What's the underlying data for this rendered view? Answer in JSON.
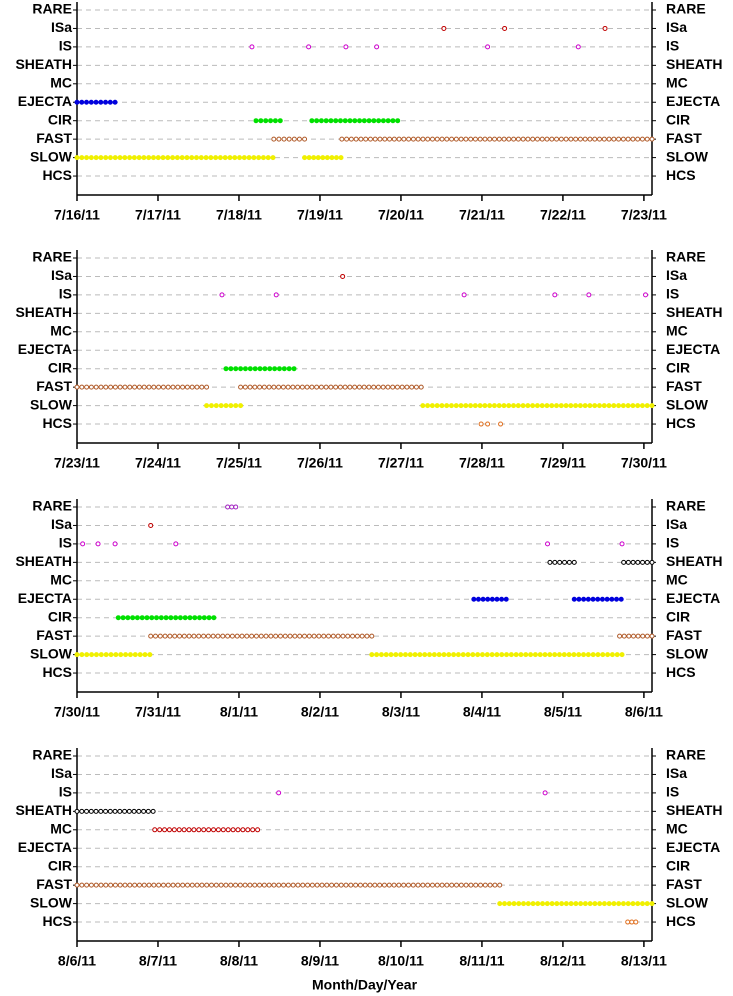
{
  "chart_data": [
    {
      "type": "timeline",
      "categories": [
        "RARE",
        "ISa",
        "IS",
        "SHEATH",
        "MC",
        "EJECTA",
        "CIR",
        "FAST",
        "SLOW",
        "HCS"
      ],
      "xlim": [
        197,
        204.1
      ],
      "xticks": [
        {
          "value": 197,
          "label": "7/16/11"
        },
        {
          "value": 198,
          "label": "7/17/11"
        },
        {
          "value": 199,
          "label": "7/18/11"
        },
        {
          "value": 200,
          "label": "7/19/11"
        },
        {
          "value": 201,
          "label": "7/20/11"
        },
        {
          "value": 202,
          "label": "7/21/11"
        },
        {
          "value": 203,
          "label": "7/22/11"
        },
        {
          "value": 204,
          "label": "7/23/11"
        }
      ],
      "grid": true,
      "series": [
        {
          "color": "#a020c0",
          "points": [],
          "runs": []
        },
        {
          "color": "#c00000",
          "points": [
            201.53,
            202.28,
            203.52
          ],
          "runs": []
        },
        {
          "color": "#cc00cc",
          "points": [
            199.16,
            199.86,
            200.32,
            200.7,
            202.07,
            203.19
          ],
          "runs": []
        },
        {
          "color": "#000000",
          "points": [],
          "runs": []
        },
        {
          "color": "#c00000",
          "points": [],
          "runs": []
        },
        {
          "color": "#0000dd",
          "filled": true,
          "points": [],
          "runs": [
            [
              197.0,
              197.47
            ]
          ]
        },
        {
          "color": "#00e000",
          "filled": true,
          "points": [],
          "runs": [
            [
              199.21,
              199.51
            ],
            [
              199.9,
              200.96
            ]
          ]
        },
        {
          "color": "#b05a28",
          "points": [],
          "runs": [
            [
              199.43,
              199.81
            ],
            [
              200.27,
              204.1
            ]
          ]
        },
        {
          "color": "#f0f000",
          "filled": true,
          "points": [],
          "runs": [
            [
              197.0,
              199.42
            ],
            [
              199.81,
              200.26
            ]
          ]
        },
        {
          "color": "#e07020",
          "points": [],
          "runs": []
        }
      ]
    },
    {
      "type": "timeline",
      "categories": [
        "RARE",
        "ISa",
        "IS",
        "SHEATH",
        "MC",
        "EJECTA",
        "CIR",
        "FAST",
        "SLOW",
        "HCS"
      ],
      "xlim": [
        204,
        211.1
      ],
      "xticks": [
        {
          "value": 204,
          "label": "7/23/11"
        },
        {
          "value": 205,
          "label": "7/24/11"
        },
        {
          "value": 206,
          "label": "7/25/11"
        },
        {
          "value": 207,
          "label": "7/26/11"
        },
        {
          "value": 208,
          "label": "7/27/11"
        },
        {
          "value": 209,
          "label": "7/28/11"
        },
        {
          "value": 210,
          "label": "7/29/11"
        },
        {
          "value": 211,
          "label": "7/30/11"
        }
      ],
      "grid": true,
      "series": [
        {
          "color": "#a020c0",
          "points": [],
          "runs": []
        },
        {
          "color": "#c00000",
          "points": [
            207.28
          ],
          "runs": []
        },
        {
          "color": "#cc00cc",
          "points": [
            205.79,
            206.46,
            208.78,
            209.9,
            210.32,
            211.02
          ],
          "runs": []
        },
        {
          "color": "#000000",
          "points": [],
          "runs": []
        },
        {
          "color": "#c00000",
          "points": [],
          "runs": []
        },
        {
          "color": "#0000dd",
          "filled": true,
          "points": [],
          "runs": []
        },
        {
          "color": "#00e000",
          "filled": true,
          "points": [],
          "runs": [
            [
              205.84,
              206.68
            ]
          ]
        },
        {
          "color": "#b05a28",
          "points": [],
          "runs": [
            [
              204.0,
              205.6
            ],
            [
              206.02,
              208.25
            ]
          ]
        },
        {
          "color": "#f0f000",
          "filled": true,
          "points": [],
          "runs": [
            [
              205.6,
              206.02
            ],
            [
              208.27,
              211.1
            ]
          ]
        },
        {
          "color": "#e07020",
          "points": [
            208.99,
            209.07,
            209.23
          ],
          "runs": []
        }
      ]
    },
    {
      "type": "timeline",
      "categories": [
        "RARE",
        "ISa",
        "IS",
        "SHEATH",
        "MC",
        "EJECTA",
        "CIR",
        "FAST",
        "SLOW",
        "HCS"
      ],
      "xlim": [
        211,
        218.1
      ],
      "xticks": [
        {
          "value": 211,
          "label": "7/30/11"
        },
        {
          "value": 212,
          "label": "7/31/11"
        },
        {
          "value": 213,
          "label": "8/1/11"
        },
        {
          "value": 214,
          "label": "8/2/11"
        },
        {
          "value": 215,
          "label": "8/3/11"
        },
        {
          "value": 216,
          "label": "8/4/11"
        },
        {
          "value": 217,
          "label": "8/5/11"
        },
        {
          "value": 218,
          "label": "8/6/11"
        }
      ],
      "grid": true,
      "series": [
        {
          "color": "#a020c0",
          "points": [
            212.86,
            212.91,
            212.96
          ],
          "runs": []
        },
        {
          "color": "#c00000",
          "points": [
            211.91
          ],
          "runs": []
        },
        {
          "color": "#cc00cc",
          "points": [
            211.07,
            211.26,
            211.47,
            212.22,
            216.81,
            217.73
          ],
          "runs": []
        },
        {
          "color": "#000000",
          "points": [],
          "runs": [
            [
              216.84,
              217.14
            ],
            [
              217.75,
              218.1
            ]
          ]
        },
        {
          "color": "#c00000",
          "points": [],
          "runs": []
        },
        {
          "color": "#0000dd",
          "filled": true,
          "points": [],
          "runs": [
            [
              215.9,
              216.3
            ],
            [
              217.14,
              217.72
            ]
          ]
        },
        {
          "color": "#00e000",
          "filled": true,
          "points": [],
          "runs": [
            [
              211.51,
              212.69
            ]
          ]
        },
        {
          "color": "#b05a28",
          "points": [],
          "runs": [
            [
              211.91,
              214.64
            ],
            [
              217.7,
              218.1
            ]
          ]
        },
        {
          "color": "#f0f000",
          "filled": true,
          "points": [],
          "runs": [
            [
              211.0,
              211.9
            ],
            [
              214.64,
              217.73
            ]
          ]
        },
        {
          "color": "#e07020",
          "points": [],
          "runs": []
        }
      ]
    },
    {
      "type": "timeline",
      "categories": [
        "RARE",
        "ISa",
        "IS",
        "SHEATH",
        "MC",
        "EJECTA",
        "CIR",
        "FAST",
        "SLOW",
        "HCS"
      ],
      "xlim": [
        218,
        225.1
      ],
      "xticks": [
        {
          "value": 218,
          "label": "8/6/11"
        },
        {
          "value": 219,
          "label": "8/7/11"
        },
        {
          "value": 220,
          "label": "8/8/11"
        },
        {
          "value": 221,
          "label": "8/9/11"
        },
        {
          "value": 222,
          "label": "8/10/11"
        },
        {
          "value": 223,
          "label": "8/11/11"
        },
        {
          "value": 224,
          "label": "8/12/11"
        },
        {
          "value": 225,
          "label": "8/13/11"
        }
      ],
      "grid": true,
      "xlabel": "Month/Day/Year",
      "series": [
        {
          "color": "#a020c0",
          "points": [],
          "runs": []
        },
        {
          "color": "#c00000",
          "points": [],
          "runs": []
        },
        {
          "color": "#cc00cc",
          "points": [
            220.49,
            223.78
          ],
          "runs": []
        },
        {
          "color": "#000000",
          "points": [],
          "runs": [
            [
              218.0,
              218.94
            ]
          ]
        },
        {
          "color": "#c00000",
          "points": [],
          "runs": [
            [
              218.96,
              220.23
            ]
          ]
        },
        {
          "color": "#0000dd",
          "filled": true,
          "points": [],
          "runs": []
        },
        {
          "color": "#00e000",
          "filled": true,
          "points": [],
          "runs": []
        },
        {
          "color": "#b05a28",
          "points": [],
          "runs": [
            [
              218.0,
              223.22
            ]
          ]
        },
        {
          "color": "#f0f000",
          "filled": true,
          "points": [],
          "runs": [
            [
              223.22,
              225.1
            ]
          ]
        },
        {
          "color": "#e07020",
          "points": [],
          "runs": [
            [
              224.8,
              224.9
            ]
          ]
        }
      ]
    }
  ]
}
